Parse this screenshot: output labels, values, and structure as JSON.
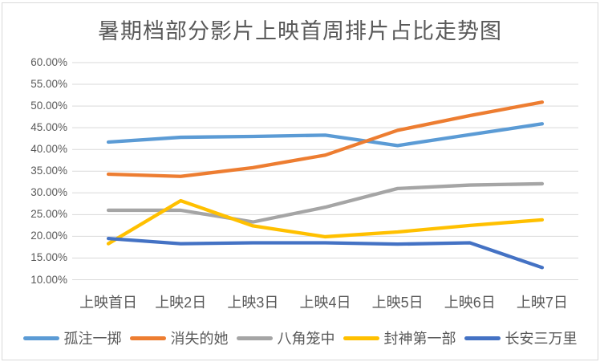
{
  "chart_data": {
    "type": "line",
    "title": "暑期档部分影片上映首周排片占比走势图",
    "categories": [
      "上映首日",
      "上映2日",
      "上映3日",
      "上映4日",
      "上映5日",
      "上映6日",
      "上映7日"
    ],
    "series": [
      {
        "name": "孤注一掷",
        "color": "#5B9BD5",
        "values": [
          41.7,
          42.8,
          43.0,
          43.3,
          40.9,
          43.4,
          45.9
        ]
      },
      {
        "name": "消失的她",
        "color": "#ED7D31",
        "values": [
          34.3,
          33.8,
          35.8,
          38.7,
          44.4,
          47.8,
          50.9
        ]
      },
      {
        "name": "八角笼中",
        "color": "#A5A5A5",
        "values": [
          26.0,
          26.0,
          23.3,
          26.7,
          31.0,
          31.8,
          32.1
        ]
      },
      {
        "name": "封神第一部",
        "color": "#FFC000",
        "values": [
          18.3,
          28.2,
          22.4,
          19.9,
          21.0,
          22.5,
          23.8
        ]
      },
      {
        "name": "长安三万里",
        "color": "#4472C4",
        "values": [
          19.5,
          18.3,
          18.5,
          18.5,
          18.2,
          18.5,
          12.8
        ]
      }
    ],
    "y_axis": {
      "min": 10,
      "max": 60,
      "step": 5,
      "tick_labels": [
        "60.00%",
        "55.00%",
        "50.00%",
        "45.00%",
        "40.00%",
        "35.00%",
        "30.00%",
        "25.00%",
        "20.00%",
        "15.00%",
        "10.00%"
      ]
    },
    "x_axis": {
      "label": ""
    },
    "grid": "on",
    "legend_position": "bottom",
    "styles": {
      "text_color": "#595959",
      "gridline_color": "#D9D9D9",
      "border_color": "#D9D9D9",
      "background": "#FFFFFF"
    }
  }
}
